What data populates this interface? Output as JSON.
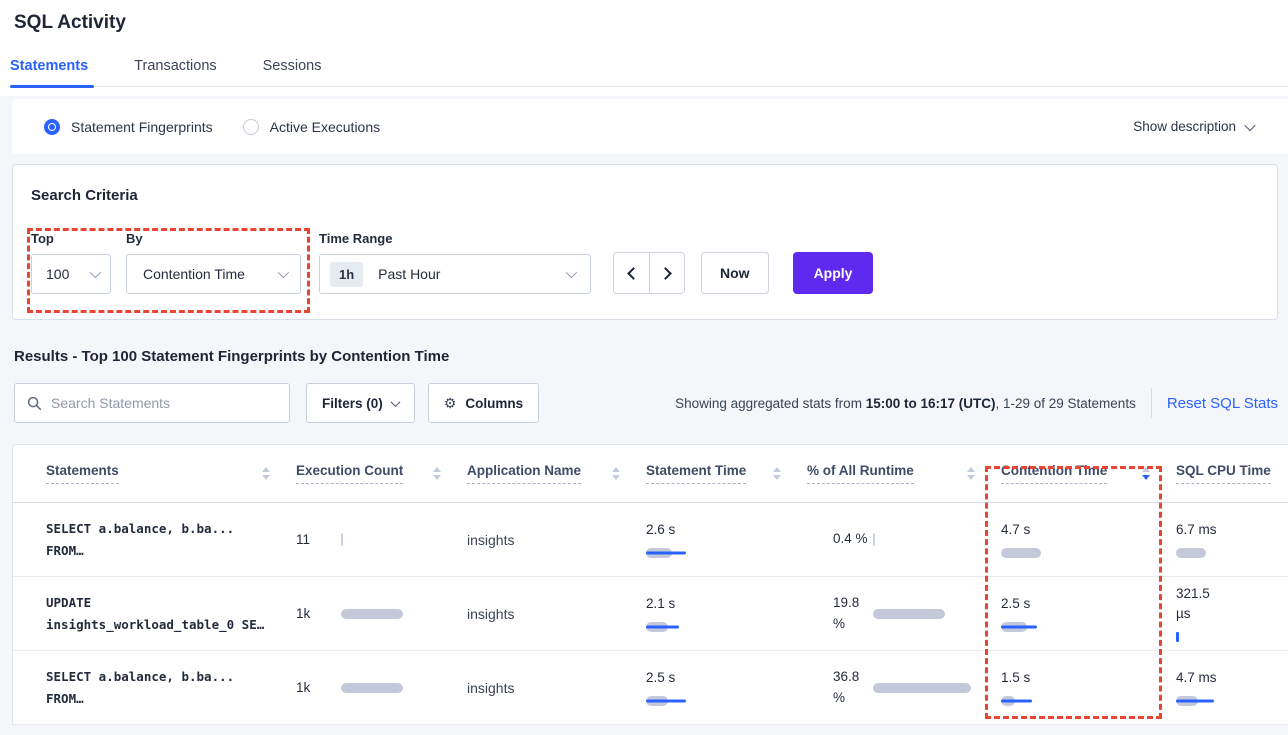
{
  "page": {
    "title": "SQL Activity"
  },
  "tabs": [
    {
      "label": "Statements",
      "active": true
    },
    {
      "label": "Transactions",
      "active": false
    },
    {
      "label": "Sessions",
      "active": false
    }
  ],
  "view_toggle": {
    "options": [
      {
        "label": "Statement Fingerprints",
        "selected": true
      },
      {
        "label": "Active Executions",
        "selected": false
      }
    ],
    "show_description_label": "Show description"
  },
  "search_criteria": {
    "title": "Search Criteria",
    "top": {
      "label": "Top",
      "value": "100"
    },
    "by": {
      "label": "By",
      "value": "Contention Time"
    },
    "time_range": {
      "label": "Time Range",
      "badge": "1h",
      "value": "Past Hour"
    },
    "now_label": "Now",
    "apply_label": "Apply"
  },
  "results": {
    "heading": "Results - Top 100 Statement Fingerprints by Contention Time",
    "search_placeholder": "Search Statements",
    "filters_label": "Filters (0)",
    "columns_label": "Columns",
    "stats_prefix": "Showing aggregated stats from ",
    "stats_range": "15:00 to 16:17 (UTC)",
    "stats_suffix": ", 1-29 of 29 Statements",
    "reset_label": "Reset SQL Stats"
  },
  "table": {
    "headers": [
      {
        "label": "Statements",
        "sort": "none"
      },
      {
        "label": "Execution Count",
        "sort": "none"
      },
      {
        "label": "Application Name",
        "sort": "none"
      },
      {
        "label": "Statement Time",
        "sort": "none"
      },
      {
        "label": "% of All Runtime",
        "sort": "none"
      },
      {
        "label": "Contention Time",
        "sort": "desc"
      },
      {
        "label": "SQL CPU Time",
        "sort": "none"
      }
    ],
    "rows": [
      {
        "statement": "SELECT a.balance, b.ba...\nFROM…",
        "execution_count": {
          "value": "11",
          "bar": {
            "kind": "tick"
          }
        },
        "application_name": "insights",
        "statement_time": {
          "value": "2.6 s",
          "bar": {
            "gray": 26,
            "blue": 40
          }
        },
        "runtime_pct": {
          "value": "0.4 %",
          "bar": {
            "kind": "tick"
          }
        },
        "contention_time": {
          "value": "4.7 s",
          "bar": {
            "gray": 40,
            "blue": 0
          }
        },
        "sql_cpu_time": {
          "value": "6.7 ms",
          "bar": {
            "gray": 30,
            "blue": 0
          }
        }
      },
      {
        "statement": "UPDATE\ninsights_workload_table_0 SE…",
        "execution_count": {
          "value": "1k",
          "bar": {
            "gray": 62,
            "blue": 0
          }
        },
        "application_name": "insights",
        "statement_time": {
          "value": "2.1 s",
          "bar": {
            "gray": 22,
            "blue": 33
          }
        },
        "runtime_pct": {
          "value": "19.8\n%",
          "bar": {
            "gray": 72,
            "blue": 0
          }
        },
        "contention_time": {
          "value": "2.5 s",
          "bar": {
            "gray": 26,
            "blue": 36
          }
        },
        "sql_cpu_time": {
          "value": "321.5\nµs",
          "bar": {
            "kind": "btick",
            "blue": 3
          }
        }
      },
      {
        "statement": "SELECT a.balance, b.ba...\nFROM…",
        "execution_count": {
          "value": "1k",
          "bar": {
            "gray": 62,
            "blue": 0
          }
        },
        "application_name": "insights",
        "statement_time": {
          "value": "2.5 s",
          "bar": {
            "gray": 22,
            "blue": 40
          }
        },
        "runtime_pct": {
          "value": "36.8\n%",
          "bar": {
            "gray": 98,
            "blue": 0
          }
        },
        "contention_time": {
          "value": "1.5 s",
          "bar": {
            "gray": 14,
            "blue": 31
          }
        },
        "sql_cpu_time": {
          "value": "4.7 ms",
          "bar": {
            "gray": 22,
            "blue": 38
          }
        }
      }
    ]
  },
  "colors": {
    "accent_blue": "#2962ff",
    "apply_purple": "#6029f0",
    "highlight_red": "#ea4432",
    "bar_gray": "#c4c9da",
    "page_background": "#f4f6f9"
  }
}
